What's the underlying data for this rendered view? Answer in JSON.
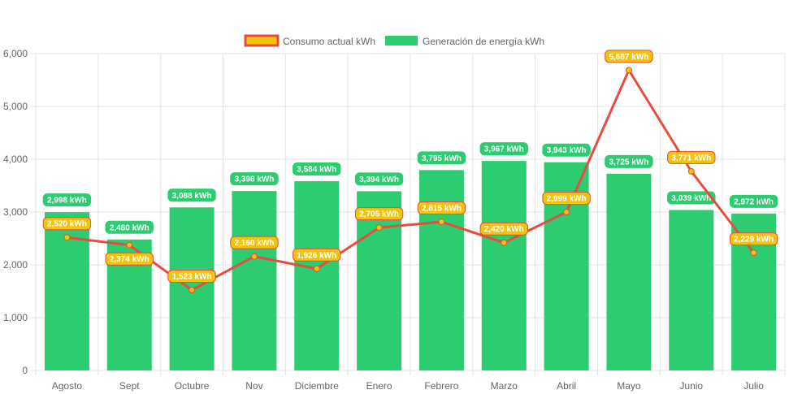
{
  "chart_data": {
    "type": "bar",
    "categories": [
      "Agosto",
      "Sept",
      "Octubre",
      "Nov",
      "Diciembre",
      "Enero",
      "Febrero",
      "Marzo",
      "Abril",
      "Mayo",
      "Junio",
      "Julio"
    ],
    "series": [
      {
        "name": "Consumo actual kWh",
        "type": "line",
        "color": "#e74c3c",
        "fill": "#f1c40f",
        "values": [
          2520,
          2374,
          1523,
          2160,
          1926,
          2705,
          2815,
          2420,
          2999,
          5687,
          3771,
          2229
        ]
      },
      {
        "name": "Generación de energía kWh",
        "type": "bar",
        "color": "#2ecc71",
        "values": [
          2998,
          2480,
          3088,
          3398,
          3584,
          3394,
          3795,
          3967,
          3943,
          3725,
          3039,
          2972
        ]
      }
    ],
    "unit": "kWh",
    "ylim": [
      0,
      6000
    ],
    "yticks": [
      0,
      1000,
      2000,
      3000,
      4000,
      5000,
      6000
    ],
    "ytick_labels": [
      "0",
      "1,000",
      "2,000",
      "3,000",
      "4,000",
      "5,000",
      "6,000"
    ],
    "grid": true,
    "legend": "top"
  }
}
